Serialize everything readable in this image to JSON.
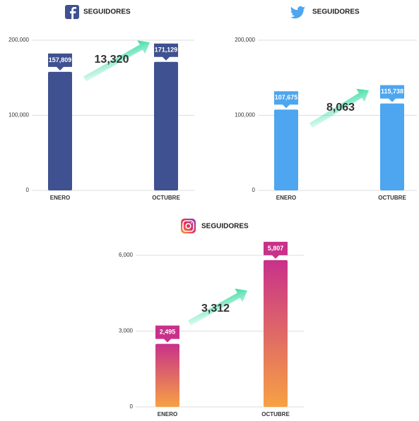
{
  "chart_data": [
    {
      "type": "bar",
      "title": "SEGUIDORES",
      "categories": [
        "ENERO",
        "OCTUBRE"
      ],
      "values": [
        157809,
        171129
      ],
      "value_labels": [
        "157,809",
        "171,129"
      ],
      "color": "#3f5190",
      "ylim": [
        0,
        200000
      ],
      "yticks": [
        0,
        {
          "value": 100000,
          "label": "100,000"
        },
        {
          "value": 200000,
          "label": "200,000"
        }
      ],
      "grid": true,
      "annotation": "13,320"
    },
    {
      "type": "bar",
      "title": "SEGUIDORES",
      "categories": [
        "ENERO",
        "OCTUBRE"
      ],
      "values": [
        107675,
        115738
      ],
      "value_labels": [
        "107,675",
        "115,738"
      ],
      "color": "#4da6ef",
      "ylim": [
        0,
        200000
      ],
      "yticks": [
        0,
        {
          "value": 100000,
          "label": "100,000"
        },
        {
          "value": 200000,
          "label": "200,000"
        }
      ],
      "grid": true,
      "annotation": "8,063"
    },
    {
      "type": "bar",
      "title": "SEGUIDORES",
      "categories": [
        "ENERO",
        "OCTUBRE"
      ],
      "values": [
        2495,
        5807
      ],
      "value_labels": [
        "2,495",
        "5,807"
      ],
      "color": [
        "#c8318a",
        "#f7a143"
      ],
      "ylim": [
        0,
        6000
      ],
      "yticks": [
        0,
        {
          "value": 3000,
          "label": "3,000"
        },
        {
          "value": 6000,
          "label": "6,000"
        }
      ],
      "grid": true,
      "annotation": "3,312"
    }
  ]
}
